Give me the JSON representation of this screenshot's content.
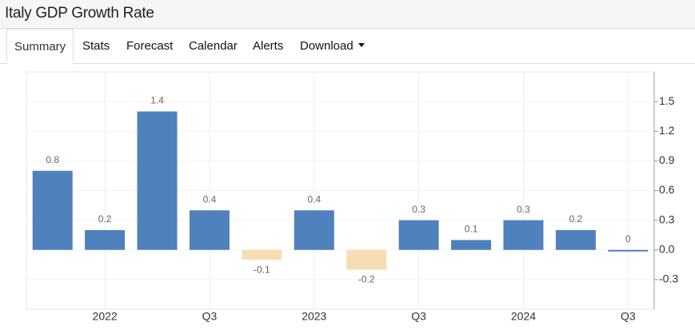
{
  "header": {
    "title": "Italy GDP Growth Rate"
  },
  "tabs": [
    "Summary",
    "Stats",
    "Forecast",
    "Calendar",
    "Alerts",
    "Download"
  ],
  "chart_data": {
    "type": "bar",
    "categories": [
      null,
      "2022",
      null,
      "Q3",
      null,
      "2023",
      null,
      "Q3",
      null,
      "2024",
      null,
      "Q3"
    ],
    "values": [
      0.8,
      0.2,
      1.4,
      0.4,
      -0.1,
      0.4,
      -0.2,
      0.3,
      0.1,
      0.3,
      0.2,
      0
    ],
    "color": "#4f81bd",
    "negative_color": "#f5deb3",
    "ylim": [
      -0.6,
      1.8
    ],
    "yticks": [
      -0.3,
      {
        "value": 0,
        "label": "0.0"
      },
      0.3,
      0.6,
      0.9,
      1.2,
      1.5
    ],
    "grid": true
  }
}
